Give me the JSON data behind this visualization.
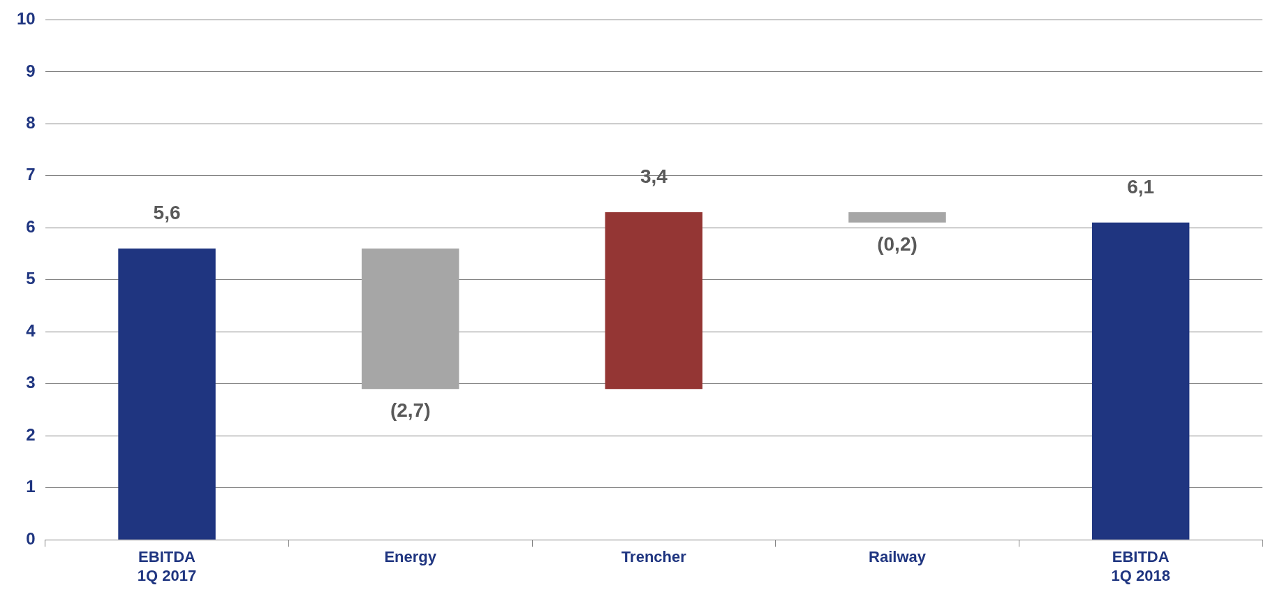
{
  "chart_data": {
    "type": "bar",
    "categories": [
      "EBITDA 1Q 2017",
      "Energy",
      "Trencher",
      "Railway",
      "EBITDA 1Q 2018"
    ],
    "values": [
      5.6,
      -2.7,
      3.4,
      -0.2,
      6.1
    ],
    "base": [
      0,
      5.6,
      2.9,
      6.3,
      0
    ],
    "colors": [
      "#1f3580",
      "#a6a6a6",
      "#943634",
      "#a6a6a6",
      "#1f3580"
    ],
    "value_labels": [
      "5,6",
      "(2,7)",
      "3,4",
      "(0,2)",
      "6,1"
    ],
    "ylim": [
      0,
      10
    ],
    "yticks": [
      0,
      1,
      2,
      3,
      4,
      5,
      6,
      7,
      8,
      9,
      10
    ],
    "grid": "y",
    "legend": false
  }
}
